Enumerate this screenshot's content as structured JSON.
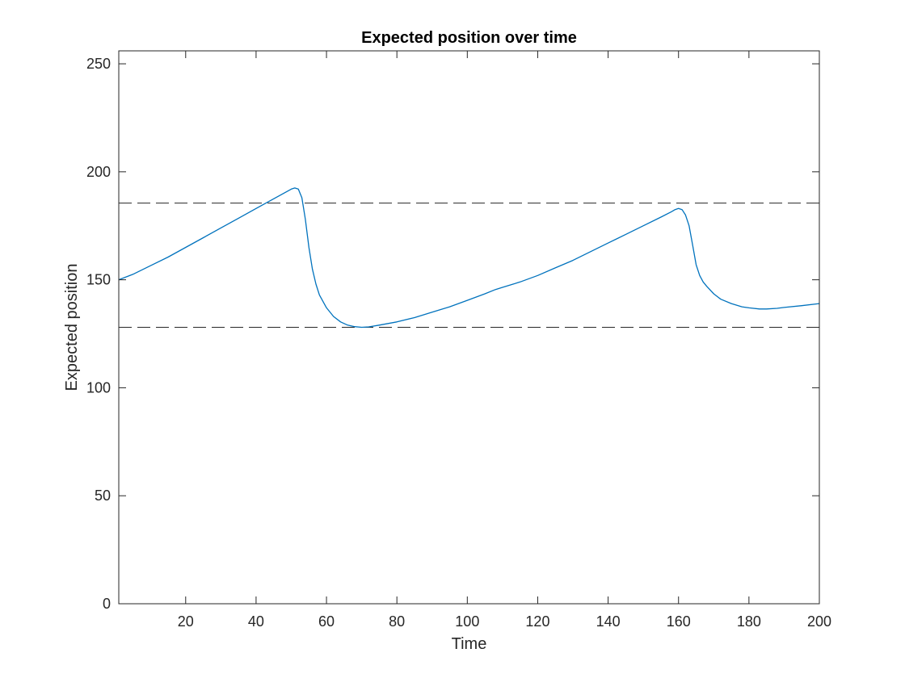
{
  "chart_data": {
    "type": "line",
    "title": "Expected position over time",
    "xlabel": "Time",
    "ylabel": "Expected position",
    "xlim": [
      1,
      200
    ],
    "ylim": [
      0,
      256
    ],
    "xticks": [
      20,
      40,
      60,
      80,
      100,
      120,
      140,
      160,
      180,
      200
    ],
    "yticks": [
      0,
      50,
      100,
      150,
      200,
      250
    ],
    "grid": false,
    "series": [
      {
        "color": "#0072BD",
        "x": [
          1,
          5,
          10,
          15,
          20,
          25,
          30,
          35,
          40,
          45,
          50,
          51,
          52,
          53,
          54,
          55,
          56,
          57,
          58,
          60,
          62,
          64,
          66,
          68,
          70,
          72,
          75,
          80,
          85,
          90,
          95,
          100,
          105,
          108,
          110,
          113,
          115,
          120,
          125,
          130,
          135,
          140,
          145,
          150,
          155,
          158,
          159,
          160,
          161,
          162,
          163,
          164,
          165,
          166,
          167,
          168,
          170,
          172,
          175,
          178,
          180,
          183,
          185,
          188,
          190,
          195,
          200
        ],
        "y": [
          150,
          152.5,
          156.5,
          160.5,
          165,
          169.5,
          174,
          178.5,
          183,
          187.5,
          192,
          192.5,
          192,
          188,
          178,
          165,
          155,
          148,
          143,
          137,
          133,
          130.5,
          129,
          128.3,
          128,
          128.2,
          129,
          130.5,
          132.5,
          135,
          137.5,
          140.5,
          143.5,
          145.5,
          146.5,
          148,
          149,
          152,
          155.5,
          159,
          163,
          167,
          171,
          175,
          179,
          181.5,
          182.5,
          183,
          182.5,
          180,
          175,
          166,
          157,
          152,
          149,
          147,
          143.5,
          141,
          139,
          137.5,
          137,
          136.5,
          136.5,
          136.8,
          137.2,
          138,
          139
        ]
      }
    ],
    "reference_lines": [
      {
        "y": 185.5,
        "style": "dashed",
        "color": "#262626"
      },
      {
        "y": 128,
        "style": "dashed",
        "color": "#262626"
      }
    ]
  }
}
